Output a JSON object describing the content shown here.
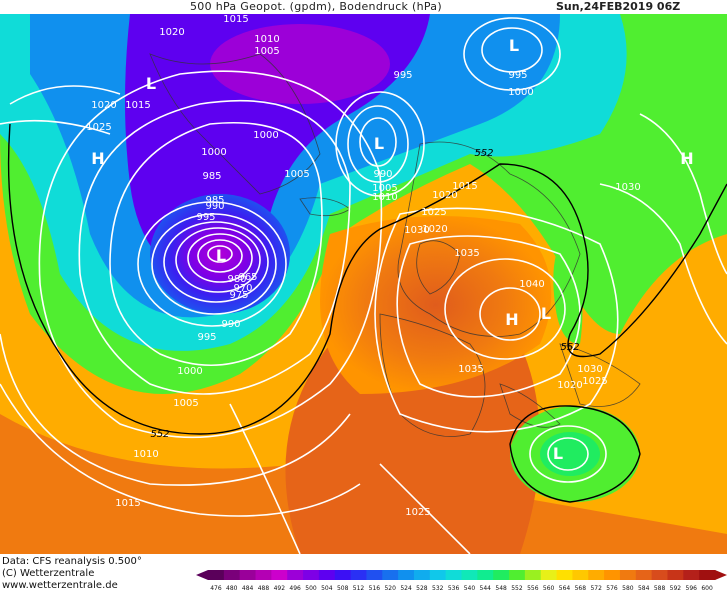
{
  "header": {
    "title": "500 hPa Geopot. (gpdm), Bodendruck (hPa)",
    "valid_time": "Sun,24FEB2019 06Z"
  },
  "footer": {
    "data_source": "Data: CFS reanalysis 0.500°",
    "copyright": "(C) Wetterzentrale",
    "website": "www.wetterzentrale.de"
  },
  "legend": {
    "values": [
      "476",
      "480",
      "484",
      "488",
      "492",
      "496",
      "500",
      "504",
      "508",
      "512",
      "516",
      "520",
      "524",
      "528",
      "532",
      "536",
      "540",
      "544",
      "548",
      "552",
      "556",
      "560",
      "564",
      "568",
      "572",
      "576",
      "580",
      "584",
      "588",
      "592",
      "596",
      "600"
    ],
    "colors": [
      "#5a005a",
      "#7a007a",
      "#9a009a",
      "#b400b4",
      "#cc00cc",
      "#9c00d8",
      "#7e00e6",
      "#5e00f0",
      "#3c10f4",
      "#2a30f4",
      "#2050f0",
      "#1870ee",
      "#1090ee",
      "#10acee",
      "#10c8ea",
      "#10dcd8",
      "#10e8b8",
      "#10ec90",
      "#20ec60",
      "#50ee30",
      "#9af020",
      "#e8f018",
      "#ffe000",
      "#ffc800",
      "#ffac00",
      "#ff9400",
      "#f07a10",
      "#e66418",
      "#d84c1c",
      "#c83418",
      "#b4201a",
      "#a01010"
    ]
  },
  "map": {
    "pressure_labels": [
      {
        "text": "1015"
      },
      {
        "text": "1020"
      },
      {
        "text": "1010"
      },
      {
        "text": "1005"
      },
      {
        "text": "995"
      },
      {
        "text": "995"
      },
      {
        "text": "1000"
      },
      {
        "text": "1020"
      },
      {
        "text": "1015"
      },
      {
        "text": "1025"
      },
      {
        "text": "1000"
      },
      {
        "text": "1000"
      },
      {
        "text": "1005"
      },
      {
        "text": "985"
      },
      {
        "text": "990"
      },
      {
        "text": "1005"
      },
      {
        "text": "1010"
      },
      {
        "text": "1015"
      },
      {
        "text": "1020"
      },
      {
        "text": "1025"
      },
      {
        "text": "1030"
      },
      {
        "text": "1035"
      },
      {
        "text": "1040"
      },
      {
        "text": "995"
      },
      {
        "text": "990"
      },
      {
        "text": "985"
      },
      {
        "text": "980"
      },
      {
        "text": "975"
      },
      {
        "text": "970"
      },
      {
        "text": "965"
      },
      {
        "text": "990"
      },
      {
        "text": "995"
      },
      {
        "text": "1000"
      },
      {
        "text": "1005"
      },
      {
        "text": "1010"
      },
      {
        "text": "1015"
      },
      {
        "text": "1035"
      },
      {
        "text": "1030"
      },
      {
        "text": "1025"
      },
      {
        "text": "1020"
      },
      {
        "text": "1030"
      },
      {
        "text": "1025"
      },
      {
        "text": "1020"
      }
    ],
    "geopotential_labels": [
      "552",
      "552",
      "552"
    ],
    "centers": [
      {
        "symbol": "H"
      },
      {
        "symbol": "H"
      },
      {
        "symbol": "H"
      },
      {
        "symbol": "L"
      },
      {
        "symbol": "L"
      },
      {
        "symbol": "L"
      },
      {
        "symbol": "L"
      },
      {
        "symbol": "L"
      },
      {
        "symbol": "L"
      }
    ]
  }
}
